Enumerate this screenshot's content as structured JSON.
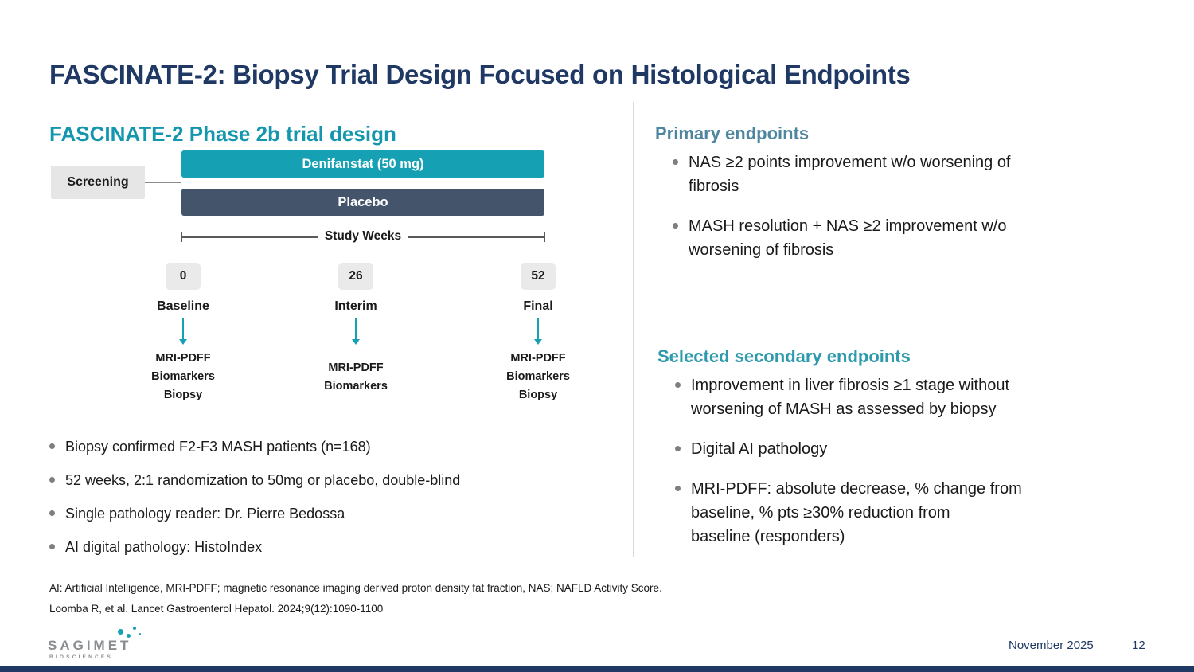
{
  "slide": {
    "title": "FASCINATE-2: Biopsy Trial Design Focused on Histological Endpoints",
    "date": "November 2025",
    "page_number": "12"
  },
  "trial_design": {
    "heading": "FASCINATE-2 Phase 2b trial design",
    "screening_label": "Screening",
    "arms": [
      {
        "label": "Denifanstat (50 mg)"
      },
      {
        "label": "Placebo"
      }
    ],
    "timeline_label": "Study Weeks",
    "timepoints": [
      {
        "week": "0",
        "label": "Baseline",
        "assessments": [
          "MRI-PDFF",
          "Biomarkers",
          "Biopsy"
        ]
      },
      {
        "week": "26",
        "label": "Interim",
        "assessments": [
          "MRI-PDFF",
          "Biomarkers"
        ]
      },
      {
        "week": "52",
        "label": "Final",
        "assessments": [
          "MRI-PDFF",
          "Biomarkers",
          "Biopsy"
        ]
      }
    ],
    "bullets": [
      "Biopsy confirmed F2-F3 MASH patients (n=168)",
      "52 weeks, 2:1 randomization to 50mg or placebo, double-blind",
      "Single pathology reader: Dr. Pierre Bedossa",
      "AI digital pathology: HistoIndex"
    ]
  },
  "primary_endpoints": {
    "heading": "Primary endpoints",
    "bullets": [
      "NAS ≥2 points improvement w/o worsening of\nfibrosis",
      "MASH resolution + NAS ≥2 improvement w/o\nworsening of fibrosis"
    ]
  },
  "secondary_endpoints": {
    "heading": "Selected secondary endpoints",
    "bullets": [
      "Improvement in liver fibrosis ≥1 stage without\nworsening of MASH as assessed by biopsy",
      "Digital AI pathology",
      "MRI-PDFF: absolute decrease, % change from\nbaseline, % pts ≥30% reduction from\nbaseline (responders)"
    ]
  },
  "footnotes": [
    "AI: Artificial Intelligence, MRI-PDFF; magnetic resonance imaging derived proton density fat fraction, NAS; NAFLD Activity Score.",
    "Loomba R, et al. Lancet Gastroenterol Hepatol. 2024;9(12):1090-1100"
  ],
  "footer": {
    "logo_text": "SAGIMET",
    "logo_subtext": "BIOSCIENCES"
  },
  "colors": {
    "title_navy": "#1F3864",
    "teal_accent": "#16A0B4",
    "slate_blue": "#44546A",
    "primary_heading": "#4E86A0",
    "secondary_heading": "#2E9AAC",
    "light_gray_box": "#E7E6E6",
    "footer_bar": "#1F3864"
  }
}
